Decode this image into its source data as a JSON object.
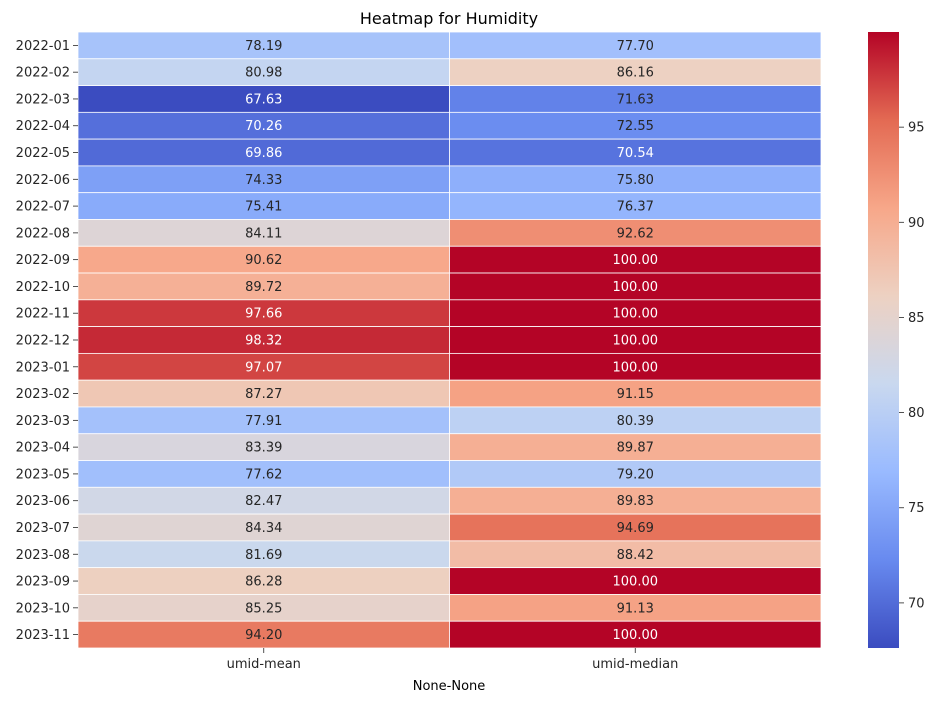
{
  "chart_data": {
    "type": "heatmap",
    "title": "Heatmap for Humidity",
    "xlabel": "None-None",
    "ylabel": "",
    "columns": [
      "umid-mean",
      "umid-median"
    ],
    "rows": [
      "2022-01",
      "2022-02",
      "2022-03",
      "2022-04",
      "2022-05",
      "2022-06",
      "2022-07",
      "2022-08",
      "2022-09",
      "2022-10",
      "2022-11",
      "2022-12",
      "2023-01",
      "2023-02",
      "2023-03",
      "2023-04",
      "2023-05",
      "2023-06",
      "2023-07",
      "2023-08",
      "2023-09",
      "2023-10",
      "2023-11"
    ],
    "values": [
      [
        78.19,
        77.7
      ],
      [
        80.98,
        86.16
      ],
      [
        67.63,
        71.63
      ],
      [
        70.26,
        72.55
      ],
      [
        69.86,
        70.54
      ],
      [
        74.33,
        75.8
      ],
      [
        75.41,
        76.37
      ],
      [
        84.11,
        92.62
      ],
      [
        90.62,
        100.0
      ],
      [
        89.72,
        100.0
      ],
      [
        97.66,
        100.0
      ],
      [
        98.32,
        100.0
      ],
      [
        97.07,
        100.0
      ],
      [
        87.27,
        91.15
      ],
      [
        77.91,
        80.39
      ],
      [
        83.39,
        89.87
      ],
      [
        77.62,
        79.2
      ],
      [
        82.47,
        89.83
      ],
      [
        84.34,
        94.69
      ],
      [
        81.69,
        88.42
      ],
      [
        86.28,
        100.0
      ],
      [
        85.25,
        91.13
      ],
      [
        94.2,
        100.0
      ]
    ],
    "value_format": "0.00",
    "colormap": "coolwarm",
    "colormap_stops": [
      "#3b4cc0",
      "#688aef",
      "#99baff",
      "#c9d8ef",
      "#edd1c2",
      "#f7a789",
      "#e36a53",
      "#b40426"
    ],
    "color_range": [
      67.63,
      100.0
    ],
    "colorbar": {
      "ticks": [
        70,
        75,
        80,
        85,
        90,
        95
      ]
    },
    "grid": false,
    "cell_separator_color": "#ffffff"
  }
}
